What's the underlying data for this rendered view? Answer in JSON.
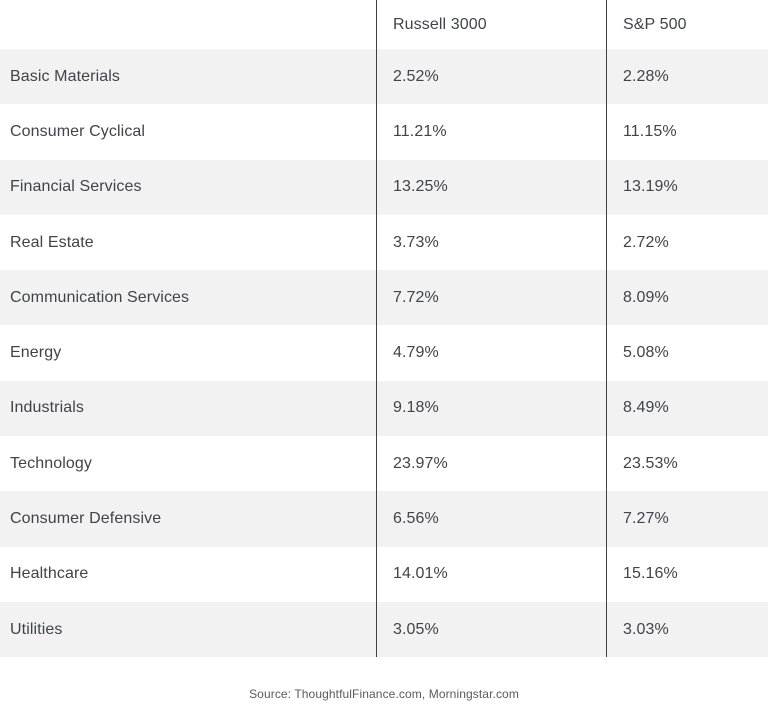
{
  "table": {
    "header": {
      "col1": "",
      "col2": "Russell 3000",
      "col3": "S&P 500"
    },
    "rows": [
      {
        "sector": "Basic Materials",
        "russell_3000": "2.52%",
        "sp500": "2.28%"
      },
      {
        "sector": "Consumer Cyclical",
        "russell_3000": "11.21%",
        "sp500": "11.15%"
      },
      {
        "sector": "Financial Services",
        "russell_3000": "13.25%",
        "sp500": "13.19%"
      },
      {
        "sector": "Real Estate",
        "russell_3000": "3.73%",
        "sp500": "2.72%"
      },
      {
        "sector": "Communication Services",
        "russell_3000": "7.72%",
        "sp500": "8.09%"
      },
      {
        "sector": "Energy",
        "russell_3000": "4.79%",
        "sp500": "5.08%"
      },
      {
        "sector": "Industrials",
        "russell_3000": "9.18%",
        "sp500": "8.49%"
      },
      {
        "sector": "Technology",
        "russell_3000": "23.97%",
        "sp500": "23.53%"
      },
      {
        "sector": "Consumer Defensive",
        "russell_3000": "6.56%",
        "sp500": "7.27%"
      },
      {
        "sector": "Healthcare",
        "russell_3000": "14.01%",
        "sp500": "15.16%"
      },
      {
        "sector": "Utilities",
        "russell_3000": "3.05%",
        "sp500": "3.03%"
      }
    ]
  },
  "footer": {
    "source": "Source: ThoughtfulFinance.com, Morningstar.com"
  },
  "colors": {
    "row_stripe": "#f2f2f2",
    "divider": "#3f4245",
    "text": "#3f434a",
    "source_text": "#575a5f"
  },
  "chart_data": {
    "type": "table",
    "columns": [
      "",
      "Russell 3000",
      "S&P 500"
    ],
    "categories": [
      "Basic Materials",
      "Consumer Cyclical",
      "Financial Services",
      "Real Estate",
      "Communication Services",
      "Energy",
      "Industrials",
      "Technology",
      "Consumer Defensive",
      "Healthcare",
      "Utilities"
    ],
    "series": [
      {
        "name": "Russell 3000",
        "values": [
          2.52,
          11.21,
          13.25,
          3.73,
          7.72,
          4.79,
          9.18,
          23.97,
          6.56,
          14.01,
          3.05
        ]
      },
      {
        "name": "S&P 500",
        "values": [
          2.28,
          11.15,
          13.19,
          2.72,
          8.09,
          5.08,
          8.49,
          23.53,
          7.27,
          15.16,
          3.03
        ]
      }
    ],
    "value_unit": "%",
    "title": "",
    "notes": "Sector weighting comparison table; values shown as percentages. Source: ThoughtfulFinance.com, Morningstar.com"
  }
}
